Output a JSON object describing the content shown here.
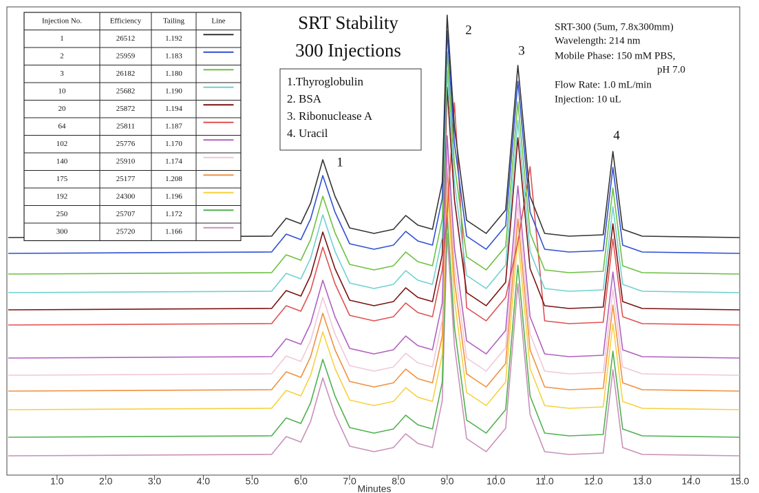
{
  "chart_data": {
    "type": "line",
    "title": [
      "SRT Stability",
      "300 Injections"
    ],
    "x_label": "Minutes",
    "peak_labels": [
      "1",
      "2",
      "3",
      "4"
    ],
    "peaks_legend": [
      "1.Thyroglobulin",
      "2. BSA",
      "3. Ribonuclease A",
      "4. Uracil"
    ],
    "conditions": [
      "SRT-300 (5um, 7.8x300mm)",
      "Wavelength: 214 nm",
      "Mobile Phase: 150 mM PBS,",
      "pH 7.0",
      "Flow Rate: 1.0 mL/min",
      "Injection: 10 uL"
    ],
    "xlim": [
      0,
      15
    ],
    "ylim": [
      0,
      680
    ],
    "xticks": [
      {
        "value": 1,
        "label": "1.0"
      },
      {
        "value": 2,
        "label": "2.0"
      },
      {
        "value": 3,
        "label": "3.0"
      },
      {
        "value": 4,
        "label": "4.0"
      },
      {
        "value": 5,
        "label": "5.0"
      },
      {
        "value": 6,
        "label": "6.0"
      },
      {
        "value": 7,
        "label": "7.0"
      },
      {
        "value": 8,
        "label": "8.0"
      },
      {
        "value": 9,
        "label": "9.0"
      },
      {
        "value": 10,
        "label": "10.0"
      },
      {
        "value": 11,
        "label": "11.0"
      },
      {
        "value": 12,
        "label": "12.0"
      },
      {
        "value": 13,
        "label": "13.0"
      },
      {
        "value": 14,
        "label": "14.0"
      },
      {
        "value": 15,
        "label": "15.0"
      }
    ],
    "x": [
      0,
      5.4,
      5.7,
      6.0,
      6.2,
      6.45,
      6.7,
      7.0,
      7.5,
      7.9,
      8.15,
      8.4,
      8.7,
      8.9,
      9.0,
      9.15,
      9.4,
      9.8,
      10.2,
      10.45,
      10.7,
      11.0,
      11.5,
      12.2,
      12.4,
      12.6,
      13.0,
      15.0
    ],
    "series": [
      {
        "name": "1",
        "color": "#333333",
        "values": [
          345,
          347,
          373,
          365,
          395,
          458,
          405,
          359,
          351,
          357,
          377,
          363,
          357,
          425,
          668,
          505,
          370,
          351,
          385,
          595,
          405,
          351,
          347,
          349,
          470,
          357,
          347,
          345
        ]
      },
      {
        "name": "2",
        "color": "#2f4fd0",
        "values": [
          322,
          324,
          350,
          342,
          372,
          435,
          382,
          336,
          328,
          334,
          354,
          340,
          334,
          402,
          645,
          482,
          347,
          328,
          362,
          572,
          382,
          328,
          324,
          326,
          447,
          334,
          324,
          322
        ]
      },
      {
        "name": "3",
        "color": "#6cc040",
        "values": [
          292,
          294,
          320,
          312,
          342,
          405,
          352,
          306,
          298,
          304,
          324,
          310,
          304,
          372,
          615,
          452,
          317,
          298,
          332,
          542,
          352,
          298,
          294,
          296,
          417,
          304,
          294,
          292
        ]
      },
      {
        "name": "10",
        "color": "#6fd0d0",
        "values": [
          265,
          267,
          293,
          285,
          315,
          378,
          325,
          279,
          271,
          277,
          297,
          283,
          277,
          345,
          588,
          425,
          290,
          271,
          305,
          515,
          325,
          271,
          267,
          269,
          390,
          277,
          267,
          265
        ]
      },
      {
        "name": "20",
        "color": "#7a1010",
        "values": [
          240,
          242,
          268,
          260,
          290,
          353,
          300,
          254,
          246,
          252,
          272,
          258,
          252,
          320,
          563,
          400,
          265,
          246,
          280,
          490,
          300,
          246,
          242,
          244,
          365,
          252,
          242,
          240
        ]
      },
      {
        "name": "64",
        "color": "#e05050",
        "values": [
          218,
          220,
          246,
          238,
          268,
          331,
          278,
          232,
          224,
          230,
          250,
          236,
          230,
          298,
          378,
          541,
          243,
          224,
          258,
          338,
          448,
          224,
          220,
          222,
          343,
          230,
          220,
          218
        ]
      },
      {
        "name": "102",
        "color": "#b060c0",
        "values": [
          170,
          172,
          198,
          190,
          220,
          283,
          230,
          184,
          176,
          182,
          202,
          188,
          182,
          250,
          493,
          330,
          195,
          176,
          210,
          420,
          230,
          176,
          172,
          174,
          295,
          182,
          172,
          170
        ]
      },
      {
        "name": "140",
        "color": "#f0c8d8",
        "values": [
          145,
          147,
          173,
          165,
          195,
          258,
          205,
          159,
          151,
          157,
          177,
          163,
          157,
          225,
          468,
          305,
          170,
          151,
          185,
          395,
          205,
          151,
          147,
          149,
          270,
          157,
          147,
          145
        ]
      },
      {
        "name": "175",
        "color": "#f09040",
        "values": [
          122,
          124,
          150,
          142,
          172,
          235,
          182,
          136,
          128,
          134,
          154,
          140,
          134,
          202,
          445,
          282,
          147,
          128,
          162,
          372,
          182,
          128,
          124,
          126,
          247,
          134,
          124,
          122
        ]
      },
      {
        "name": "192",
        "color": "#f8d040",
        "values": [
          95,
          97,
          123,
          115,
          145,
          208,
          155,
          109,
          101,
          107,
          127,
          113,
          107,
          175,
          418,
          255,
          120,
          101,
          135,
          345,
          155,
          101,
          97,
          99,
          220,
          107,
          97,
          95
        ]
      },
      {
        "name": "250",
        "color": "#50b050",
        "values": [
          55,
          57,
          83,
          75,
          105,
          168,
          115,
          69,
          61,
          67,
          87,
          73,
          67,
          135,
          378,
          215,
          80,
          61,
          95,
          305,
          115,
          61,
          57,
          59,
          180,
          67,
          57,
          55
        ]
      },
      {
        "name": "300",
        "color": "#c890b8",
        "values": [
          28,
          30,
          56,
          48,
          78,
          141,
          88,
          42,
          34,
          40,
          60,
          46,
          40,
          108,
          351,
          188,
          53,
          34,
          68,
          278,
          88,
          34,
          30,
          32,
          153,
          40,
          30,
          28
        ]
      }
    ],
    "legend_table": {
      "columns": [
        "Injection No.",
        "Efficiency",
        "Tailing",
        "Line"
      ],
      "efficiency": [
        "26512",
        "25959",
        "26182",
        "25682",
        "25872",
        "25811",
        "25776",
        "25910",
        "25177",
        "24300",
        "25707",
        "25720"
      ],
      "tailing": [
        "1.192",
        "1.183",
        "1.180",
        "1.190",
        "1.194",
        "1.187",
        "1.170",
        "1.174",
        "1.208",
        "1.196",
        "1.172",
        "1.166"
      ]
    }
  }
}
